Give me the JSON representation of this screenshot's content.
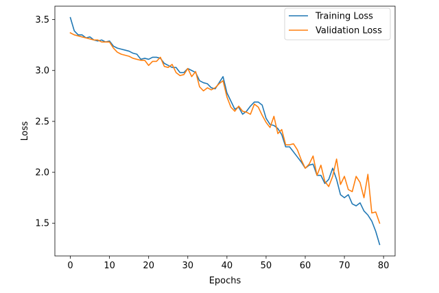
{
  "chart_data": {
    "type": "line",
    "title": "",
    "xlabel": "Epochs",
    "ylabel": "Loss",
    "xlim": [
      -3.95,
      82.95
    ],
    "ylim": [
      1.178,
      3.632
    ],
    "xticks": [
      0,
      10,
      20,
      30,
      40,
      50,
      60,
      70,
      80
    ],
    "yticks": [
      1.5,
      2.0,
      2.5,
      3.0,
      3.5
    ],
    "xtick_labels": [
      "0",
      "10",
      "20",
      "30",
      "40",
      "50",
      "60",
      "70",
      "80"
    ],
    "ytick_labels": [
      "1.5",
      "2.0",
      "2.5",
      "3.0",
      "3.5"
    ],
    "grid": false,
    "legend": "top-right",
    "x": [
      0,
      1,
      2,
      3,
      4,
      5,
      6,
      7,
      8,
      9,
      10,
      11,
      12,
      13,
      14,
      15,
      16,
      17,
      18,
      19,
      20,
      21,
      22,
      23,
      24,
      25,
      26,
      27,
      28,
      29,
      30,
      31,
      32,
      33,
      34,
      35,
      36,
      37,
      38,
      39,
      40,
      41,
      42,
      43,
      44,
      45,
      46,
      47,
      48,
      49,
      50,
      51,
      52,
      53,
      54,
      55,
      56,
      57,
      58,
      59,
      60,
      61,
      62,
      63,
      64,
      65,
      66,
      67,
      68,
      69,
      70,
      71,
      72,
      73,
      74,
      75,
      76,
      77,
      78,
      79
    ],
    "series": [
      {
        "name": "Training Loss",
        "color": "#1f77b4",
        "values": [
          3.52,
          3.39,
          3.35,
          3.35,
          3.32,
          3.33,
          3.3,
          3.29,
          3.3,
          3.28,
          3.29,
          3.24,
          3.22,
          3.21,
          3.2,
          3.19,
          3.17,
          3.16,
          3.11,
          3.12,
          3.11,
          3.13,
          3.13,
          3.12,
          3.07,
          3.05,
          3.03,
          3.03,
          2.98,
          2.98,
          3.02,
          3.0,
          2.98,
          2.9,
          2.88,
          2.87,
          2.83,
          2.82,
          2.88,
          2.94,
          2.78,
          2.7,
          2.62,
          2.64,
          2.57,
          2.6,
          2.65,
          2.69,
          2.69,
          2.66,
          2.53,
          2.47,
          2.46,
          2.43,
          2.37,
          2.25,
          2.25,
          2.2,
          2.15,
          2.1,
          2.04,
          2.07,
          2.08,
          1.97,
          1.97,
          1.89,
          1.93,
          2.04,
          1.93,
          1.78,
          1.75,
          1.78,
          1.69,
          1.67,
          1.7,
          1.62,
          1.58,
          1.52,
          1.42,
          1.29
        ]
      },
      {
        "name": "Validation Loss",
        "color": "#ff7f0e",
        "values": [
          3.37,
          3.35,
          3.34,
          3.33,
          3.32,
          3.31,
          3.3,
          3.3,
          3.28,
          3.28,
          3.28,
          3.22,
          3.18,
          3.16,
          3.15,
          3.14,
          3.12,
          3.11,
          3.1,
          3.1,
          3.05,
          3.09,
          3.09,
          3.13,
          3.04,
          3.03,
          3.06,
          2.98,
          2.95,
          2.96,
          3.02,
          2.94,
          2.99,
          2.84,
          2.8,
          2.83,
          2.81,
          2.83,
          2.87,
          2.9,
          2.74,
          2.64,
          2.6,
          2.65,
          2.6,
          2.59,
          2.57,
          2.67,
          2.64,
          2.56,
          2.49,
          2.44,
          2.55,
          2.38,
          2.42,
          2.27,
          2.27,
          2.28,
          2.22,
          2.12,
          2.04,
          2.08,
          2.16,
          1.97,
          2.07,
          1.91,
          1.86,
          1.96,
          2.13,
          1.88,
          1.96,
          1.83,
          1.81,
          1.96,
          1.9,
          1.75,
          1.98,
          1.6,
          1.61,
          1.5
        ]
      }
    ]
  }
}
